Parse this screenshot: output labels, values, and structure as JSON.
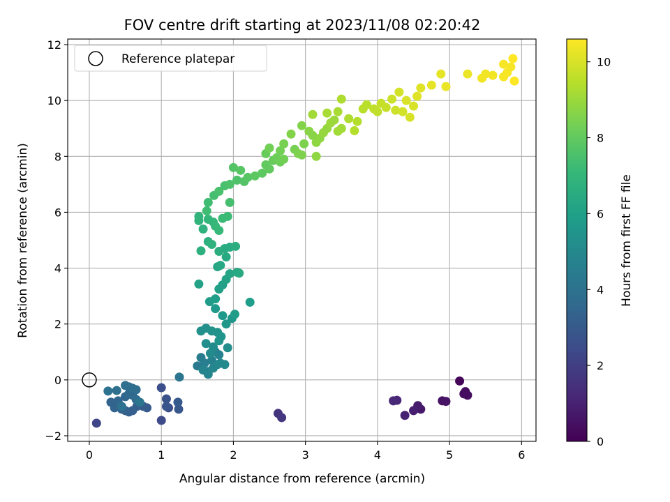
{
  "chart_data": {
    "type": "scatter",
    "title": "FOV centre drift starting at 2023/11/08 02:20:42",
    "xlabel": "Angular distance from reference (arcmin)",
    "ylabel": "Rotation from reference (arcmin)",
    "xlim": [
      -0.3,
      6.2
    ],
    "ylim": [
      -2.2,
      12.2
    ],
    "xticks": [
      0,
      1,
      2,
      3,
      4,
      5,
      6
    ],
    "yticks": [
      -2,
      0,
      2,
      4,
      6,
      8,
      10,
      12
    ],
    "grid": true,
    "legend": {
      "location": "top-left",
      "entries": [
        "Reference platepar"
      ]
    },
    "reference_point": {
      "x": 0,
      "y": 0
    },
    "colorbar": {
      "label": "Hours from first FF file",
      "range": [
        0,
        10.6
      ],
      "ticks": [
        0,
        2,
        4,
        6,
        8,
        10
      ],
      "colormap": [
        "#440154",
        "#482878",
        "#3e4989",
        "#31688e",
        "#26828e",
        "#1f9e89",
        "#35b779",
        "#6ece58",
        "#b5de2b",
        "#fde725"
      ]
    },
    "points": [
      [
        5.14,
        -0.04,
        0.15
      ],
      [
        5.22,
        -0.42,
        0.3
      ],
      [
        5.25,
        -0.55,
        0.4
      ],
      [
        5.2,
        -0.5,
        0.35
      ],
      [
        4.9,
        -0.75,
        0.5
      ],
      [
        4.95,
        -0.77,
        0.55
      ],
      [
        4.6,
        -1.05,
        0.7
      ],
      [
        4.56,
        -0.92,
        0.8
      ],
      [
        4.5,
        -1.1,
        0.9
      ],
      [
        4.38,
        -1.27,
        1.0
      ],
      [
        4.27,
        -0.73,
        1.1
      ],
      [
        4.22,
        -0.75,
        1.2
      ],
      [
        2.62,
        -1.2,
        1.6
      ],
      [
        2.67,
        -1.35,
        1.7
      ],
      [
        0.1,
        -1.55,
        2.2
      ],
      [
        1.0,
        -1.45,
        2.4
      ],
      [
        1.1,
        -1.0,
        2.5
      ],
      [
        1.0,
        -0.28,
        2.6
      ],
      [
        1.07,
        -0.68,
        2.7
      ],
      [
        1.07,
        -0.95,
        2.8
      ],
      [
        1.24,
        -1.05,
        2.9
      ],
      [
        1.23,
        -0.8,
        3.0
      ],
      [
        0.8,
        -1.0,
        3.0
      ],
      [
        0.75,
        -0.95,
        3.1
      ],
      [
        0.66,
        -0.95,
        3.1
      ],
      [
        0.6,
        -1.1,
        3.2
      ],
      [
        0.55,
        -1.15,
        3.2
      ],
      [
        0.5,
        -1.1,
        3.3
      ],
      [
        0.45,
        -1.05,
        3.3
      ],
      [
        0.35,
        -1.0,
        3.4
      ],
      [
        0.3,
        -0.8,
        3.4
      ],
      [
        0.4,
        -0.75,
        3.5
      ],
      [
        0.5,
        -0.6,
        3.5
      ],
      [
        0.55,
        -0.5,
        3.6
      ],
      [
        0.6,
        -0.55,
        3.6
      ],
      [
        0.65,
        -0.7,
        3.7
      ],
      [
        0.55,
        -0.25,
        3.7
      ],
      [
        0.6,
        -0.3,
        3.8
      ],
      [
        0.65,
        -0.35,
        3.8
      ],
      [
        0.5,
        -0.2,
        3.9
      ],
      [
        0.38,
        -0.38,
        3.9
      ],
      [
        0.26,
        -0.4,
        4.0
      ],
      [
        0.45,
        -0.95,
        4.0
      ],
      [
        0.7,
        -0.8,
        4.1
      ],
      [
        1.25,
        0.1,
        4.1
      ],
      [
        1.5,
        0.5,
        4.3
      ],
      [
        1.55,
        0.8,
        4.4
      ],
      [
        1.6,
        0.6,
        4.5
      ],
      [
        1.65,
        0.3,
        4.6
      ],
      [
        1.7,
        0.7,
        4.6
      ],
      [
        1.75,
        1.0,
        4.7
      ],
      [
        1.8,
        0.9,
        4.7
      ],
      [
        1.65,
        0.2,
        4.8
      ],
      [
        1.58,
        0.35,
        4.8
      ],
      [
        1.72,
        0.42,
        4.9
      ],
      [
        1.78,
        0.55,
        4.9
      ],
      [
        1.82,
        0.6,
        5.0
      ],
      [
        1.88,
        0.55,
        5.0
      ],
      [
        1.68,
        0.95,
        5.1
      ],
      [
        1.72,
        1.18,
        5.1
      ],
      [
        1.92,
        1.15,
        5.2
      ],
      [
        1.62,
        1.3,
        5.2
      ],
      [
        1.55,
        1.75,
        5.3
      ],
      [
        1.62,
        1.85,
        5.3
      ],
      [
        1.7,
        1.75,
        5.4
      ],
      [
        1.78,
        1.7,
        5.4
      ],
      [
        1.83,
        1.55,
        5.5
      ],
      [
        1.8,
        1.4,
        5.5
      ],
      [
        1.9,
        2.0,
        5.6
      ],
      [
        1.98,
        2.2,
        5.6
      ],
      [
        1.85,
        2.3,
        5.7
      ],
      [
        1.75,
        2.55,
        5.7
      ],
      [
        2.02,
        2.35,
        5.8
      ],
      [
        1.67,
        2.8,
        5.8
      ],
      [
        2.23,
        2.78,
        5.9
      ],
      [
        1.75,
        2.9,
        5.9
      ],
      [
        1.8,
        3.25,
        6.0
      ],
      [
        1.85,
        3.4,
        6.0
      ],
      [
        1.52,
        3.43,
        6.1
      ],
      [
        1.9,
        3.6,
        6.1
      ],
      [
        1.95,
        3.8,
        6.2
      ],
      [
        1.78,
        4.05,
        6.2
      ],
      [
        1.82,
        4.1,
        6.3
      ],
      [
        2.05,
        3.85,
        6.3
      ],
      [
        2.08,
        3.82,
        6.4
      ],
      [
        1.9,
        4.4,
        6.4
      ],
      [
        1.88,
        4.7,
        6.5
      ],
      [
        1.95,
        4.75,
        6.5
      ],
      [
        2.03,
        4.78,
        6.6
      ],
      [
        1.8,
        4.6,
        6.6
      ],
      [
        1.55,
        4.62,
        6.7
      ],
      [
        1.65,
        4.95,
        6.7
      ],
      [
        1.7,
        4.85,
        6.8
      ],
      [
        1.58,
        5.4,
        6.8
      ],
      [
        1.52,
        5.7,
        6.9
      ],
      [
        1.52,
        5.85,
        6.9
      ],
      [
        1.65,
        5.75,
        7.0
      ],
      [
        1.72,
        5.65,
        7.0
      ],
      [
        1.75,
        5.5,
        7.1
      ],
      [
        1.8,
        5.35,
        7.1
      ],
      [
        1.85,
        5.78,
        7.2
      ],
      [
        1.92,
        5.85,
        7.2
      ],
      [
        1.63,
        6.05,
        7.3
      ],
      [
        1.65,
        6.35,
        7.3
      ],
      [
        1.95,
        6.35,
        7.4
      ],
      [
        1.73,
        6.6,
        7.4
      ],
      [
        1.8,
        6.75,
        7.5
      ],
      [
        1.88,
        6.95,
        7.5
      ],
      [
        1.95,
        7.0,
        7.6
      ],
      [
        2.05,
        7.15,
        7.6
      ],
      [
        2.15,
        7.1,
        7.7
      ],
      [
        2.0,
        7.6,
        7.7
      ],
      [
        2.1,
        7.5,
        7.8
      ],
      [
        2.2,
        7.25,
        7.8
      ],
      [
        2.3,
        7.3,
        7.9
      ],
      [
        2.4,
        7.4,
        7.9
      ],
      [
        2.45,
        7.7,
        8.0
      ],
      [
        2.5,
        7.55,
        8.0
      ],
      [
        2.55,
        7.85,
        8.1
      ],
      [
        2.45,
        8.1,
        8.1
      ],
      [
        2.6,
        7.95,
        8.2
      ],
      [
        2.65,
        7.8,
        8.2
      ],
      [
        2.7,
        7.9,
        8.3
      ],
      [
        2.5,
        8.3,
        8.3
      ],
      [
        2.65,
        8.2,
        8.3
      ],
      [
        2.7,
        8.45,
        8.4
      ],
      [
        2.85,
        8.25,
        8.4
      ],
      [
        2.9,
        8.1,
        8.5
      ],
      [
        2.95,
        8.05,
        8.5
      ],
      [
        2.98,
        8.45,
        8.5
      ],
      [
        2.8,
        8.8,
        8.6
      ],
      [
        2.95,
        9.1,
        8.6
      ],
      [
        3.05,
        8.9,
        8.7
      ],
      [
        3.1,
        8.75,
        8.7
      ],
      [
        3.15,
        8.5,
        8.8
      ],
      [
        3.2,
        8.65,
        8.8
      ],
      [
        3.15,
        8.0,
        8.8
      ],
      [
        3.25,
        8.85,
        8.9
      ],
      [
        3.3,
        9.0,
        8.9
      ],
      [
        3.35,
        9.2,
        9.0
      ],
      [
        3.4,
        9.3,
        9.0
      ],
      [
        3.45,
        8.9,
        9.1
      ],
      [
        3.5,
        9.0,
        9.1
      ],
      [
        3.1,
        9.5,
        9.1
      ],
      [
        3.3,
        9.55,
        9.2
      ],
      [
        3.45,
        9.6,
        9.2
      ],
      [
        3.5,
        10.05,
        9.3
      ],
      [
        3.6,
        9.35,
        9.3
      ],
      [
        3.68,
        8.92,
        9.4
      ],
      [
        3.72,
        9.25,
        9.4
      ],
      [
        3.8,
        9.7,
        9.5
      ],
      [
        3.85,
        9.85,
        9.5
      ],
      [
        3.95,
        9.7,
        9.6
      ],
      [
        4.0,
        9.6,
        9.6
      ],
      [
        4.05,
        9.9,
        9.7
      ],
      [
        4.12,
        9.75,
        9.7
      ],
      [
        4.2,
        10.05,
        9.8
      ],
      [
        4.25,
        9.65,
        9.8
      ],
      [
        4.3,
        10.3,
        9.9
      ],
      [
        4.35,
        9.6,
        9.9
      ],
      [
        4.4,
        10.0,
        10.0
      ],
      [
        4.45,
        9.4,
        10.0
      ],
      [
        4.5,
        9.8,
        10.0
      ],
      [
        4.55,
        10.15,
        10.1
      ],
      [
        4.6,
        10.45,
        10.1
      ],
      [
        4.75,
        10.55,
        10.2
      ],
      [
        4.88,
        10.95,
        10.2
      ],
      [
        4.95,
        10.5,
        10.3
      ],
      [
        5.25,
        10.95,
        10.3
      ],
      [
        5.45,
        10.8,
        10.4
      ],
      [
        5.5,
        10.95,
        10.4
      ],
      [
        5.6,
        10.9,
        10.4
      ],
      [
        5.75,
        10.85,
        10.5
      ],
      [
        5.8,
        11.0,
        10.5
      ],
      [
        5.75,
        11.3,
        10.5
      ],
      [
        5.85,
        11.2,
        10.5
      ],
      [
        5.88,
        11.5,
        10.6
      ],
      [
        5.9,
        10.7,
        10.6
      ]
    ]
  }
}
